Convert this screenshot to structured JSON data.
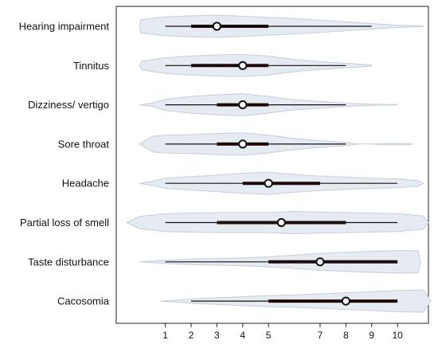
{
  "chart_data": {
    "type": "violin",
    "xticks": [
      1,
      2,
      3,
      4,
      5,
      7,
      8,
      9,
      10
    ],
    "xlim": [
      -0.9,
      11.2
    ],
    "categories": [
      "Hearing impairment",
      "Tinnitus",
      "Dizziness/ vertigo",
      "Sore throat",
      "Headache",
      "Partial loss of smell",
      "Taste disturbance",
      "Cacosomia"
    ],
    "stats": [
      {
        "whisker": [
          1,
          9
        ],
        "iqr": [
          2,
          5
        ],
        "median": 3
      },
      {
        "whisker": [
          1,
          8
        ],
        "iqr": [
          2,
          5
        ],
        "median": 4
      },
      {
        "whisker": [
          1,
          8
        ],
        "iqr": [
          3,
          5
        ],
        "median": 4
      },
      {
        "whisker": [
          1,
          8
        ],
        "iqr": [
          3,
          5
        ],
        "median": 4
      },
      {
        "whisker": [
          1,
          10
        ],
        "iqr": [
          4,
          7
        ],
        "median": 5
      },
      {
        "whisker": [
          1,
          10
        ],
        "iqr": [
          3,
          8
        ],
        "median": 5.5
      },
      {
        "whisker": [
          1,
          10
        ],
        "iqr": [
          5,
          10
        ],
        "median": 7
      },
      {
        "whisker": [
          2,
          10
        ],
        "iqr": [
          5,
          10
        ],
        "median": 8
      }
    ],
    "density": [
      [
        [
          0,
          0
        ],
        [
          0.05,
          0.6
        ],
        [
          1,
          0.85
        ],
        [
          2,
          0.95
        ],
        [
          3,
          1
        ],
        [
          4,
          0.9
        ],
        [
          5,
          0.8
        ],
        [
          6,
          0.7
        ],
        [
          7,
          0.55
        ],
        [
          8,
          0.4
        ],
        [
          9,
          0.25
        ],
        [
          10,
          0.1
        ],
        [
          11,
          0.02
        ]
      ],
      [
        [
          0,
          0
        ],
        [
          0.1,
          0.4
        ],
        [
          1,
          0.7
        ],
        [
          2,
          0.85
        ],
        [
          3,
          0.95
        ],
        [
          4,
          1
        ],
        [
          5,
          0.85
        ],
        [
          6,
          0.55
        ],
        [
          7,
          0.35
        ],
        [
          8,
          0.2
        ],
        [
          9,
          0.05
        ]
      ],
      [
        [
          0,
          0
        ],
        [
          0.5,
          0.15
        ],
        [
          1,
          0.5
        ],
        [
          2,
          0.75
        ],
        [
          3,
          0.9
        ],
        [
          4,
          1
        ],
        [
          5,
          0.75
        ],
        [
          6,
          0.45
        ],
        [
          7,
          0.3
        ],
        [
          8,
          0.15
        ],
        [
          9,
          0.05
        ],
        [
          10,
          0.02
        ]
      ],
      [
        [
          0,
          0
        ],
        [
          0.5,
          0.7
        ],
        [
          1,
          0.8
        ],
        [
          2,
          0.85
        ],
        [
          3,
          0.95
        ],
        [
          4,
          1
        ],
        [
          5,
          0.8
        ],
        [
          6,
          0.5
        ],
        [
          7,
          0.3
        ],
        [
          8,
          0.15
        ],
        [
          8.5,
          0
        ],
        [
          9,
          0
        ],
        [
          9.4,
          0.06
        ],
        [
          10.5,
          0.06
        ],
        [
          10.6,
          0
        ]
      ],
      [
        [
          0,
          0
        ],
        [
          0.5,
          0.2
        ],
        [
          1,
          0.45
        ],
        [
          2,
          0.6
        ],
        [
          3,
          0.75
        ],
        [
          4,
          0.9
        ],
        [
          5,
          1
        ],
        [
          6,
          0.8
        ],
        [
          7,
          0.65
        ],
        [
          8,
          0.55
        ],
        [
          9,
          0.45
        ],
        [
          10,
          0.4
        ],
        [
          10.8,
          0.25
        ],
        [
          11,
          0
        ]
      ],
      [
        [
          -0.5,
          0
        ],
        [
          0,
          0.55
        ],
        [
          1,
          0.8
        ],
        [
          2,
          0.85
        ],
        [
          3,
          0.9
        ],
        [
          4,
          0.9
        ],
        [
          5,
          0.9
        ],
        [
          6,
          1
        ],
        [
          7,
          0.95
        ],
        [
          8,
          0.9
        ],
        [
          9,
          0.85
        ],
        [
          10,
          0.8
        ],
        [
          11,
          0.6
        ],
        [
          11.2,
          0
        ]
      ],
      [
        [
          0,
          0
        ],
        [
          1,
          0.15
        ],
        [
          2,
          0.25
        ],
        [
          3,
          0.3
        ],
        [
          4,
          0.35
        ],
        [
          5,
          0.45
        ],
        [
          6,
          0.6
        ],
        [
          7,
          0.75
        ],
        [
          8,
          0.85
        ],
        [
          9,
          0.95
        ],
        [
          10,
          1
        ],
        [
          10.8,
          1
        ],
        [
          10.9,
          0
        ]
      ],
      [
        [
          0.8,
          0
        ],
        [
          1.5,
          0.1
        ],
        [
          2,
          0.2
        ],
        [
          3,
          0.3
        ],
        [
          4,
          0.4
        ],
        [
          5,
          0.5
        ],
        [
          6,
          0.55
        ],
        [
          7,
          0.65
        ],
        [
          8,
          0.75
        ],
        [
          9,
          0.85
        ],
        [
          10,
          0.95
        ],
        [
          11,
          1
        ],
        [
          11.3,
          0
        ]
      ]
    ]
  }
}
